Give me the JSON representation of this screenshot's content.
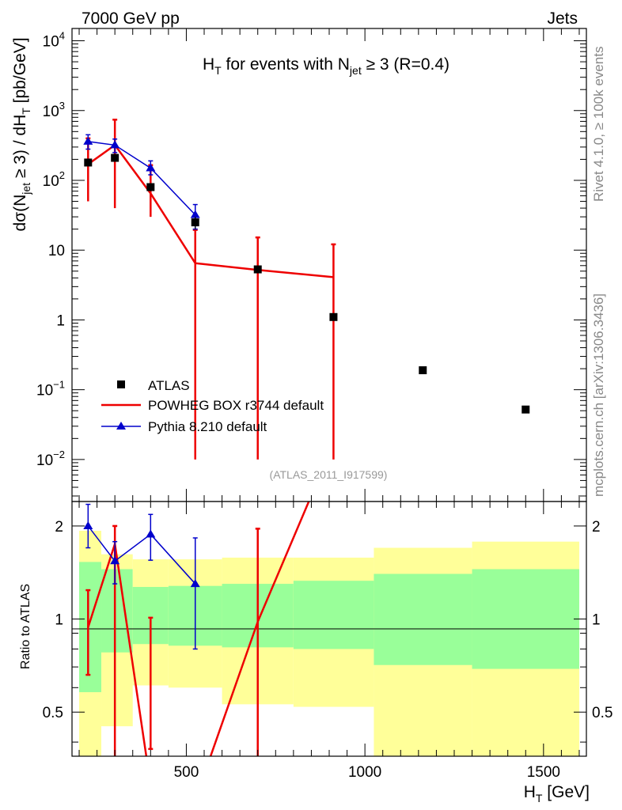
{
  "header": {
    "left": "7000 GeV pp",
    "right": "Jets"
  },
  "side_labels": {
    "rivet": "Rivet 4.1.0, ≥ 100k events",
    "mcplots": "mcplots.cern.ch [arXiv:1306.3436]"
  },
  "chart_data": [
    {
      "type": "scatter",
      "panel": "main",
      "title": {
        "pre": "H",
        "pre_sub": "T",
        "mid": " for events with N",
        "mid_sub": "jet",
        "post": " ≥ 3 (R=0.4)"
      },
      "ylabel": {
        "a": "dσ(N",
        "a_sub": "jet",
        "b": " ≥ 3) / dH",
        "b_sub": "T",
        "c": " [pb/GeV]"
      },
      "yscale": "log",
      "ylim": [
        0.0025,
        15000
      ],
      "xlim": [
        180,
        1620
      ],
      "yticks": [
        {
          "value": 0.01,
          "base": "10",
          "exp": "−2"
        },
        {
          "value": 0.1,
          "base": "10",
          "exp": "−1"
        },
        {
          "value": 1,
          "base": "1",
          "exp": ""
        },
        {
          "value": 10,
          "base": "10",
          "exp": ""
        },
        {
          "value": 100,
          "base": "10",
          "exp": "2"
        },
        {
          "value": 1000,
          "base": "10",
          "exp": "3"
        },
        {
          "value": 10000,
          "base": "10",
          "exp": "4"
        }
      ],
      "watermark": "(ATLAS_2011_I917599)",
      "series": [
        {
          "name": "ATLAS",
          "kind": "data",
          "color": "#000000",
          "x": [
            225,
            300,
            400,
            525,
            700,
            912,
            1162,
            1450
          ],
          "y": [
            180,
            210,
            80,
            25,
            5.3,
            1.1,
            0.19,
            0.052
          ],
          "yerr_lo": [
            20,
            20,
            10,
            5,
            0.5,
            0.1,
            0.02,
            0.005
          ],
          "yerr_hi": [
            20,
            20,
            10,
            5,
            0.5,
            0.1,
            0.02,
            0.005
          ]
        },
        {
          "name": "POWHEG BOX r3744 default",
          "kind": "line",
          "color": "#ee0000",
          "x": [
            225,
            300,
            400,
            525,
            700,
            912
          ],
          "y": [
            170,
            320,
            65,
            6.5,
            5.2,
            4.1
          ],
          "yerr_lo": [
            120,
            280,
            35,
            6.49,
            5.19,
            4.09
          ],
          "yerr_hi": [
            230,
            420,
            100,
            13,
            10,
            8
          ]
        },
        {
          "name": "Pythia 8.210 default",
          "kind": "line-marker",
          "color": "#0000cc",
          "x": [
            225,
            300,
            400,
            525
          ],
          "y": [
            360,
            320,
            150,
            32
          ],
          "yerr_lo": [
            280,
            250,
            120,
            20
          ],
          "yerr_hi": [
            450,
            390,
            190,
            45
          ]
        }
      ]
    },
    {
      "type": "area",
      "panel": "ratio",
      "ylabel": "Ratio to ATLAS",
      "yscale": "log",
      "ylim": [
        0.36,
        2.4
      ],
      "xlim": [
        180,
        1620
      ],
      "xlabel": {
        "main": "H",
        "sub": "T",
        "unit": " [GeV]"
      },
      "xticks": [
        {
          "value": 500,
          "label": "500"
        },
        {
          "value": 1000,
          "label": "1000"
        },
        {
          "value": 1500,
          "label": "1500"
        }
      ],
      "yticks": [
        {
          "value": 0.5,
          "label": "0.5"
        },
        {
          "value": 1,
          "label": "1"
        },
        {
          "value": 2,
          "label": "2"
        }
      ],
      "bands": {
        "bins": [
          {
            "x0": 200,
            "x1": 262,
            "g_lo": 0.58,
            "g_hi": 1.53,
            "y_lo": 0.34,
            "y_hi": 1.93
          },
          {
            "x0": 262,
            "x1": 350,
            "g_lo": 0.78,
            "g_hi": 1.45,
            "y_lo": 0.45,
            "y_hi": 1.62
          },
          {
            "x0": 350,
            "x1": 450,
            "g_lo": 0.83,
            "g_hi": 1.27,
            "y_lo": 0.61,
            "y_hi": 1.56
          },
          {
            "x0": 450,
            "x1": 600,
            "g_lo": 0.82,
            "g_hi": 1.28,
            "y_lo": 0.6,
            "y_hi": 1.56
          },
          {
            "x0": 600,
            "x1": 800,
            "g_lo": 0.81,
            "g_hi": 1.3,
            "y_lo": 0.53,
            "y_hi": 1.58
          },
          {
            "x0": 800,
            "x1": 1025,
            "g_lo": 0.8,
            "g_hi": 1.33,
            "y_lo": 0.52,
            "y_hi": 1.58
          },
          {
            "x0": 1025,
            "x1": 1300,
            "g_lo": 0.71,
            "g_hi": 1.4,
            "y_lo": 0.34,
            "y_hi": 1.7
          },
          {
            "x0": 1300,
            "x1": 1600,
            "g_lo": 0.69,
            "g_hi": 1.45,
            "y_lo": 0.34,
            "y_hi": 1.78
          }
        ],
        "inner_color": "#99ff99",
        "outer_color": "#ffff99"
      },
      "series": [
        {
          "name": "POWHEG BOX r3744 default",
          "color": "#ee0000",
          "x": [
            225,
            300,
            400,
            525,
            700,
            912
          ],
          "y": [
            0.94,
            1.75,
            0.29,
            0.26,
            0.98,
            3.7
          ],
          "yerr_lo": [
            0.66,
            0.34,
            0.38,
            0.26,
            0.34,
            3.7
          ],
          "yerr_hi": [
            1.24,
            2.0,
            1.01,
            0.26,
            1.96,
            3.7
          ]
        },
        {
          "name": "Pythia 8.210 default",
          "color": "#0000cc",
          "x": [
            225,
            300,
            400,
            525
          ],
          "y": [
            2.0,
            1.54,
            1.88,
            1.3
          ],
          "yerr_lo": [
            1.7,
            1.3,
            1.55,
            0.8
          ],
          "yerr_hi": [
            2.35,
            1.78,
            2.18,
            1.83
          ]
        }
      ]
    }
  ]
}
